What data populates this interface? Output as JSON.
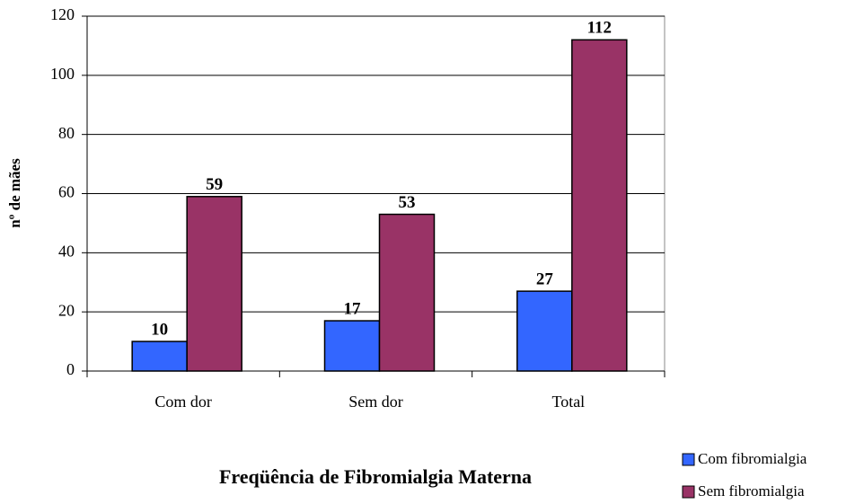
{
  "chart_data": {
    "type": "bar",
    "title": "Freqüência de Fibromialgia Materna",
    "ylabel": "nº de mães",
    "categories": [
      "Com dor",
      "Sem dor",
      "Total"
    ],
    "series": [
      {
        "name": "Com fibromialgia",
        "color": "#3366ff",
        "values": [
          10,
          17,
          27
        ]
      },
      {
        "name": "Sem fibromialgia",
        "color": "#993366",
        "values": [
          59,
          53,
          112
        ]
      }
    ],
    "ylim": [
      0,
      120
    ],
    "yticks": [
      0,
      20,
      40,
      60,
      80,
      100,
      120
    ],
    "grid": true,
    "legend": "bottom-right",
    "data_labels": true
  }
}
